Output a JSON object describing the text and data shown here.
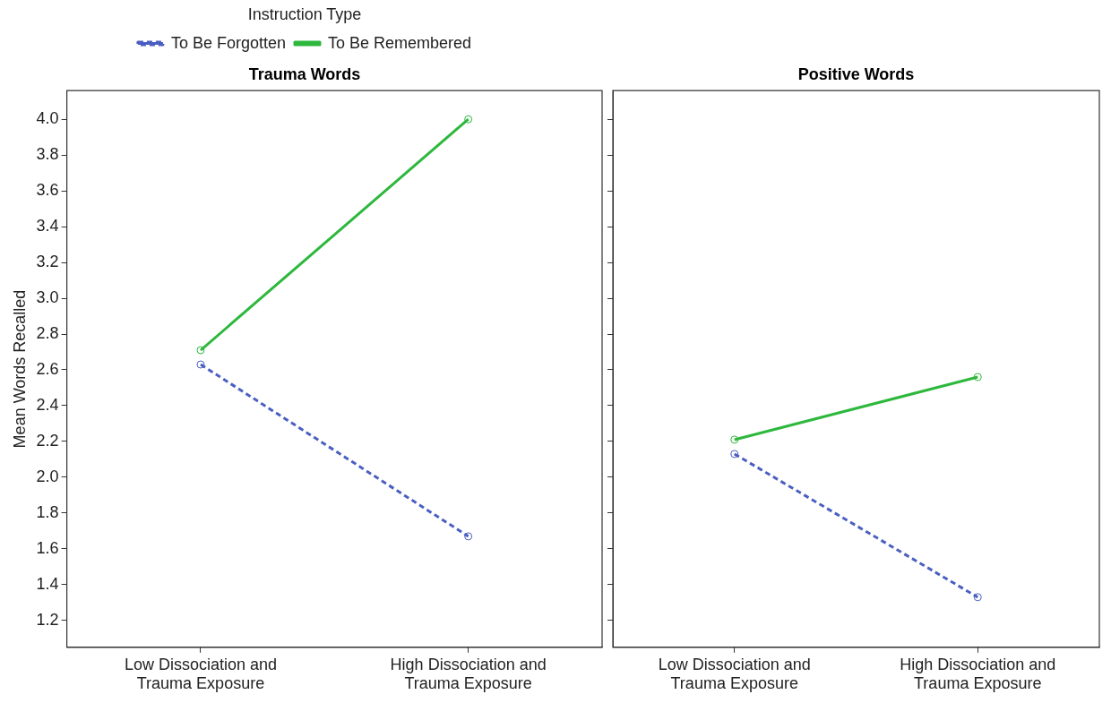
{
  "chart_data": [
    {
      "type": "line",
      "title": "Trauma Words",
      "ylabel": "Mean Words Recalled",
      "legend_title": "Instruction Type",
      "legend": "top",
      "categories": [
        "Low Dissociation and Trauma Exposure",
        "High Dissociation and Trauma Exposure"
      ],
      "series": [
        {
          "name": "To Be Forgotten",
          "color": "#4a5fc1",
          "values": [
            2.63,
            1.67
          ],
          "line_style": "dashed"
        },
        {
          "name": "To Be Remembered",
          "color": "#2db83d",
          "values": [
            2.71,
            4.0
          ],
          "line_style": "solid"
        }
      ],
      "ylim": [
        1.05,
        4.16
      ],
      "yticks": [
        {
          "value": 1.2,
          "label": "1.2"
        },
        {
          "value": 1.4,
          "label": "1.4"
        },
        {
          "value": 1.6,
          "label": "1.6"
        },
        {
          "value": 1.8,
          "label": "1.8"
        },
        {
          "value": 2.0,
          "label": "2.0"
        },
        {
          "value": 2.2,
          "label": "2.2"
        },
        {
          "value": 2.4,
          "label": "2.4"
        },
        {
          "value": 2.6,
          "label": "2.6"
        },
        {
          "value": 2.8,
          "label": "2.8"
        },
        {
          "value": 3.0,
          "label": "3.0"
        },
        {
          "value": 3.2,
          "label": "3.2"
        },
        {
          "value": 3.4,
          "label": "3.4"
        },
        {
          "value": 3.6,
          "label": "3.6"
        },
        {
          "value": 3.8,
          "label": "3.8"
        },
        {
          "value": 4.0,
          "label": "4.0"
        }
      ],
      "grid": false,
      "marker": "circle"
    },
    {
      "type": "line",
      "title": "Positive Words",
      "tick_labels": "x",
      "categories": [
        "Low Dissociation and Trauma Exposure",
        "High Dissociation and Trauma Exposure"
      ],
      "series": [
        {
          "color": "#4a5fc1",
          "values": [
            2.13,
            1.33
          ],
          "line_style": "dashed"
        },
        {
          "color": "#2db83d",
          "values": [
            2.21,
            2.56
          ],
          "line_style": "solid"
        }
      ],
      "ylim": [
        1.05,
        4.16
      ],
      "yticks": [
        {
          "value": 1.2,
          "label": null
        },
        {
          "value": 1.4,
          "label": null
        },
        {
          "value": 1.6,
          "label": null
        },
        {
          "value": 1.8,
          "label": null
        },
        {
          "value": 2.0,
          "label": null
        },
        {
          "value": 2.2,
          "label": null
        },
        {
          "value": 2.4,
          "label": null
        },
        {
          "value": 2.6,
          "label": null
        },
        {
          "value": 2.8,
          "label": null
        },
        {
          "value": 3.0,
          "label": null
        },
        {
          "value": 3.2,
          "label": null
        },
        {
          "value": 3.4,
          "label": null
        },
        {
          "value": 3.6,
          "label": null
        },
        {
          "value": 3.8,
          "label": null
        },
        {
          "value": 4.0,
          "label": null
        }
      ],
      "grid": false,
      "marker": "circle"
    }
  ]
}
